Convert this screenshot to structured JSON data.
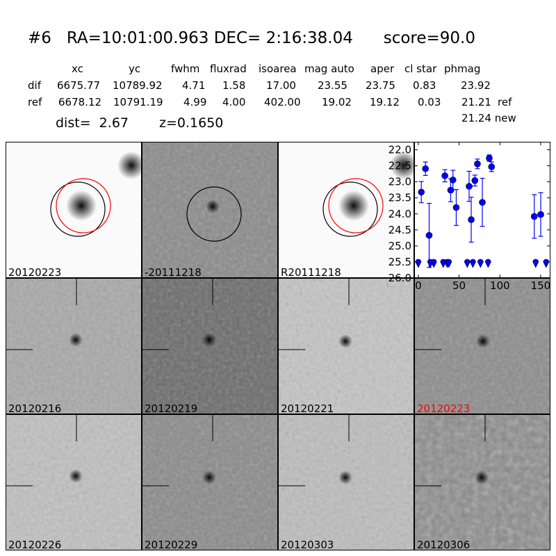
{
  "header": {
    "title": "#6   RA=10:01:00.963 DEC= 2:16:38.04      score=90.0",
    "columns": [
      "xc",
      "yc",
      "fwhm",
      "fluxrad",
      "isoarea",
      "mag auto",
      "aper",
      "cl star",
      "phmag"
    ],
    "rows": [
      {
        "label": "dif",
        "values": [
          "6675.77",
          "10789.92",
          "4.71",
          "1.58",
          "17.00",
          "23.55",
          "23.75",
          "0.83",
          "23.92"
        ],
        "suffix": ""
      },
      {
        "label": "ref",
        "values": [
          "6678.12",
          "10791.19",
          "4.99",
          "4.00",
          "402.00",
          "19.02",
          "19.12",
          "0.03",
          "21.21"
        ],
        "suffix": "ref"
      }
    ],
    "new_phmag": "21.24 new",
    "dist": "dist=  2.67",
    "z": "z=0.1650"
  },
  "stamps": [
    {
      "label": "20120223",
      "style": "ref"
    },
    {
      "label": "-20111218",
      "style": "diff"
    },
    {
      "label": "R20111218",
      "style": "ref"
    },
    {
      "label": "20120216",
      "style": "noise"
    },
    {
      "label": "20120219",
      "style": "noise"
    },
    {
      "label": "20120221",
      "style": "noise"
    },
    {
      "label": "20120223",
      "style": "noise",
      "highlight": "#ff0000"
    },
    {
      "label": "20120226",
      "style": "noise"
    },
    {
      "label": "20120229",
      "style": "noise"
    },
    {
      "label": "20120303",
      "style": "noise"
    },
    {
      "label": "20120306",
      "style": "noise"
    }
  ],
  "chart_data": {
    "type": "scatter",
    "title": "",
    "xlabel": "",
    "ylabel": "",
    "xlim": [
      -5,
      162
    ],
    "ylim": [
      26.0,
      21.75
    ],
    "y_inverted": true,
    "xticks": [
      0,
      50,
      100,
      150
    ],
    "yticks": [
      "22.0",
      "22.5",
      "23.0",
      "23.5",
      "24.0",
      "24.5",
      "25.0",
      "25.5",
      "26.0"
    ],
    "color": "#0000ff",
    "detections": [
      {
        "x": 3.7,
        "y": 23.32,
        "err": 0.33
      },
      {
        "x": 8.8,
        "y": 22.59,
        "err": 0.21
      },
      {
        "x": 13.3,
        "y": 24.67,
        "err": 1.0
      },
      {
        "x": 32.6,
        "y": 22.81,
        "err": 0.19
      },
      {
        "x": 39.7,
        "y": 23.26,
        "err": 0.36
      },
      {
        "x": 42.5,
        "y": 22.94,
        "err": 0.3
      },
      {
        "x": 46.5,
        "y": 23.8,
        "err": 0.56
      },
      {
        "x": 62.3,
        "y": 23.14,
        "err": 0.47
      },
      {
        "x": 64.9,
        "y": 24.18,
        "err": 0.7
      },
      {
        "x": 69.4,
        "y": 22.96,
        "err": 0.17
      },
      {
        "x": 72.5,
        "y": 22.44,
        "err": 0.15
      },
      {
        "x": 78.5,
        "y": 23.64,
        "err": 0.75
      },
      {
        "x": 87.0,
        "y": 22.26,
        "err": 0.1
      },
      {
        "x": 89.8,
        "y": 22.53,
        "err": 0.15
      },
      {
        "x": 142.2,
        "y": 24.08,
        "err": 0.68
      },
      {
        "x": 150.1,
        "y": 24.02,
        "err": 0.68
      }
    ],
    "upper_limits": {
      "y": 25.5,
      "x": [
        0,
        14.7,
        19,
        30.6,
        35.4,
        37.4,
        60,
        66.9,
        76.2,
        85.6,
        143.9,
        156.7
      ]
    }
  }
}
